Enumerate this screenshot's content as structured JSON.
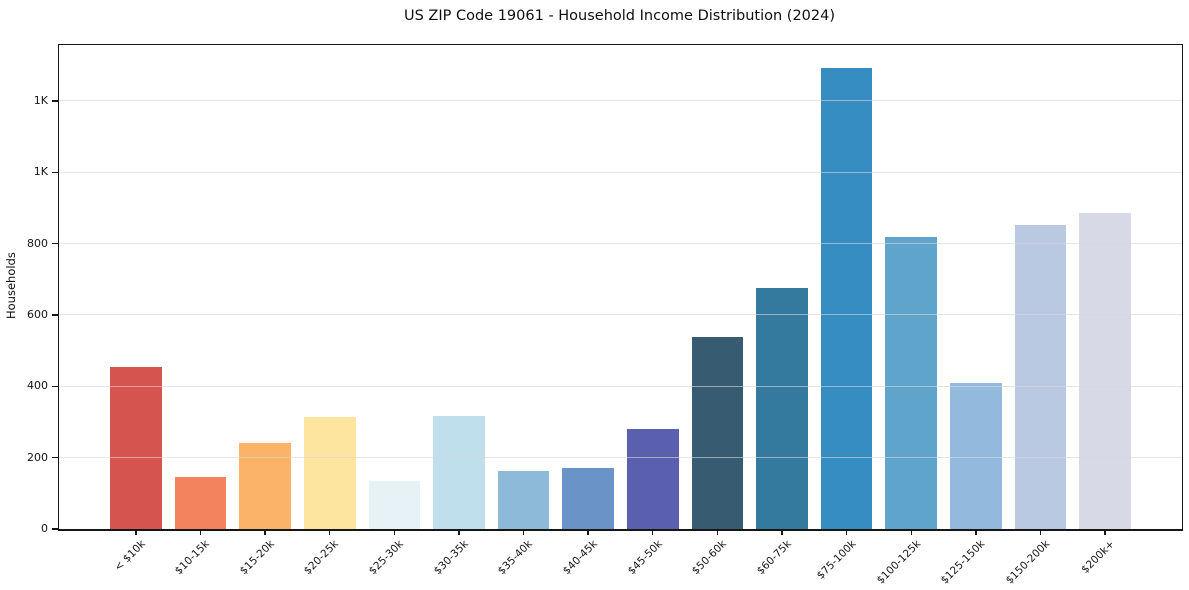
{
  "chart_data": {
    "type": "bar",
    "title": "US ZIP Code 19061 - Household Income Distribution (2024)",
    "xlabel": "",
    "ylabel": "Households",
    "categories": [
      "< $10k",
      "$10-15k",
      "$15-20k",
      "$20-25k",
      "$25-30k",
      "$30-35k",
      "$35-40k",
      "$40-45k",
      "$45-50k",
      "$50-60k",
      "$60-75k",
      "$75-100k",
      "$100-125k",
      "$125-150k",
      "$150-200k",
      "$200k+"
    ],
    "values": [
      455,
      145,
      241,
      314,
      135,
      317,
      162,
      172,
      280,
      537,
      676,
      1292,
      818,
      409,
      853,
      887
    ],
    "bar_colors": [
      "#d6544f",
      "#f2835e",
      "#fab367",
      "#fde5a0",
      "#e7f2f6",
      "#bfdfec",
      "#8dbad9",
      "#6a93c8",
      "#5a5fae",
      "#375c72",
      "#347a9e",
      "#368dc1",
      "#5fa5cb",
      "#93badc",
      "#b9c9e1",
      "#d7d9e6"
    ],
    "ylim": [
      0,
      1357
    ],
    "yticks": [
      {
        "value": 0,
        "label": "0"
      },
      {
        "value": 200,
        "label": "200"
      },
      {
        "value": 400,
        "label": "400"
      },
      {
        "value": 600,
        "label": "600"
      },
      {
        "value": 800,
        "label": "800"
      },
      {
        "value": 1000,
        "label": "1K"
      },
      {
        "value": 1200,
        "label": "1K"
      }
    ],
    "grid": "horizontal",
    "legend": "none",
    "background_color": "#ffffff",
    "axis_color": "#161616"
  }
}
